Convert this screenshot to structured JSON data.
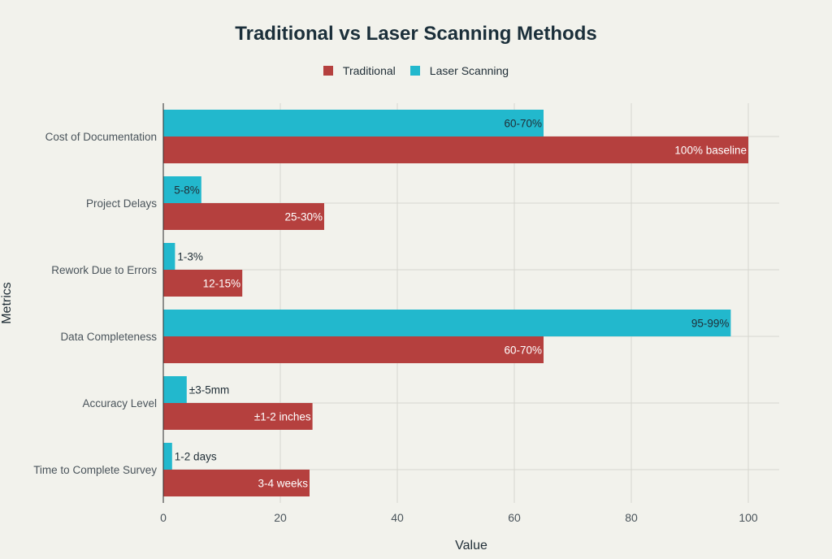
{
  "chart_data": {
    "type": "bar",
    "orientation": "horizontal",
    "title": "Traditional vs Laser Scanning Methods",
    "xlabel": "Value",
    "ylabel": "Metrics",
    "xlim": [
      0,
      105
    ],
    "xticks": [
      0,
      20,
      40,
      60,
      80,
      100
    ],
    "grid": true,
    "legend_position": "top-center",
    "categories": [
      "Cost of Documentation",
      "Project Delays",
      "Rework Due to Errors",
      "Data Completeness",
      "Accuracy Level",
      "Time to Complete Survey"
    ],
    "series": [
      {
        "name": "Traditional",
        "color": "#b5403e",
        "values": [
          100,
          27.5,
          13.5,
          65,
          25.5,
          25
        ],
        "labels": [
          "100% baseline",
          "25-30%",
          "12-15%",
          "60-70%",
          "±1-2 inches",
          "3-4 weeks"
        ]
      },
      {
        "name": "Laser Scanning",
        "color": "#22b8cd",
        "values": [
          65,
          6.5,
          2,
          97,
          4,
          1.5
        ],
        "labels": [
          "60-70%",
          "5-8%",
          "1-3%",
          "95-99%",
          "±3-5mm",
          "1-2 days"
        ]
      }
    ]
  }
}
